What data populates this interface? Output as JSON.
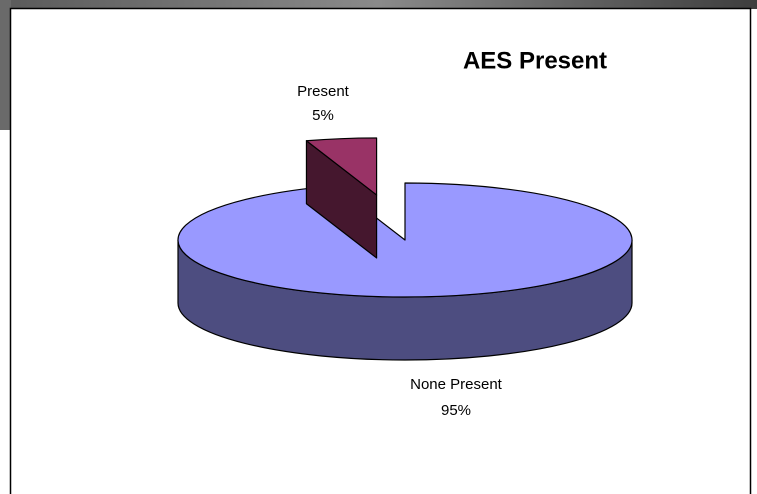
{
  "chart_data": {
    "type": "pie3d",
    "title": "AES Present",
    "categories": [
      "None Present",
      "Present"
    ],
    "values": [
      95,
      5
    ],
    "value_labels": [
      "95%",
      "5%"
    ],
    "colors": [
      "#9999ff",
      "#993366"
    ]
  }
}
